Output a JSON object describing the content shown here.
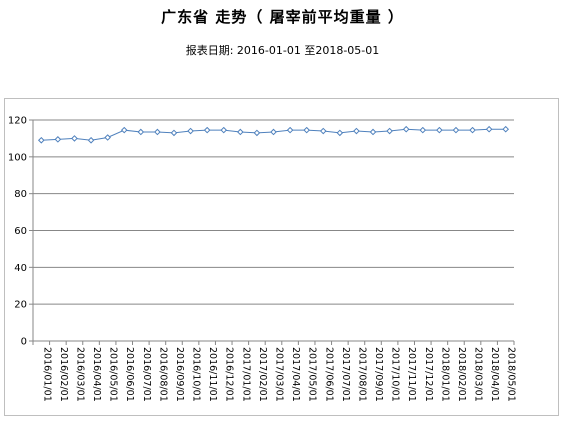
{
  "header": {
    "title": "广东省  走势（ 屠宰前平均重量 ）",
    "subtitle": "报表日期: 2016-01-01 至2018-05-01"
  },
  "chart_data": {
    "type": "line",
    "title": "广东省  走势（ 屠宰前平均重量 ）",
    "xlabel": "",
    "ylabel": "",
    "ylim": [
      0,
      120
    ],
    "yticks": [
      0,
      20,
      40,
      60,
      80,
      100,
      120
    ],
    "grid": true,
    "legend": "none",
    "line_color": "#4f81bd",
    "categories": [
      "2016/01/01",
      "2016/02/01",
      "2016/03/01",
      "2016/04/01",
      "2016/05/01",
      "2016/06/01",
      "2016/07/01",
      "2016/08/01",
      "2016/09/01",
      "2016/10/01",
      "2016/11/01",
      "2016/12/01",
      "2017/01/01",
      "2017/02/01",
      "2017/03/01",
      "2017/04/01",
      "2017/05/01",
      "2017/06/01",
      "2017/07/01",
      "2017/08/01",
      "2017/09/01",
      "2017/10/01",
      "2017/11/01",
      "2017/12/01",
      "2018/01/01",
      "2018/02/01",
      "2018/03/01",
      "2018/04/01",
      "2018/05/01"
    ],
    "values": [
      109,
      109.5,
      110,
      109,
      110.5,
      114.5,
      113.5,
      113.5,
      113,
      114,
      114.5,
      114.5,
      113.5,
      113,
      113.5,
      114.5,
      114.5,
      114,
      113,
      114,
      113.5,
      114,
      115,
      114.5,
      114.5,
      114.5,
      114.5,
      115,
      115
    ]
  }
}
